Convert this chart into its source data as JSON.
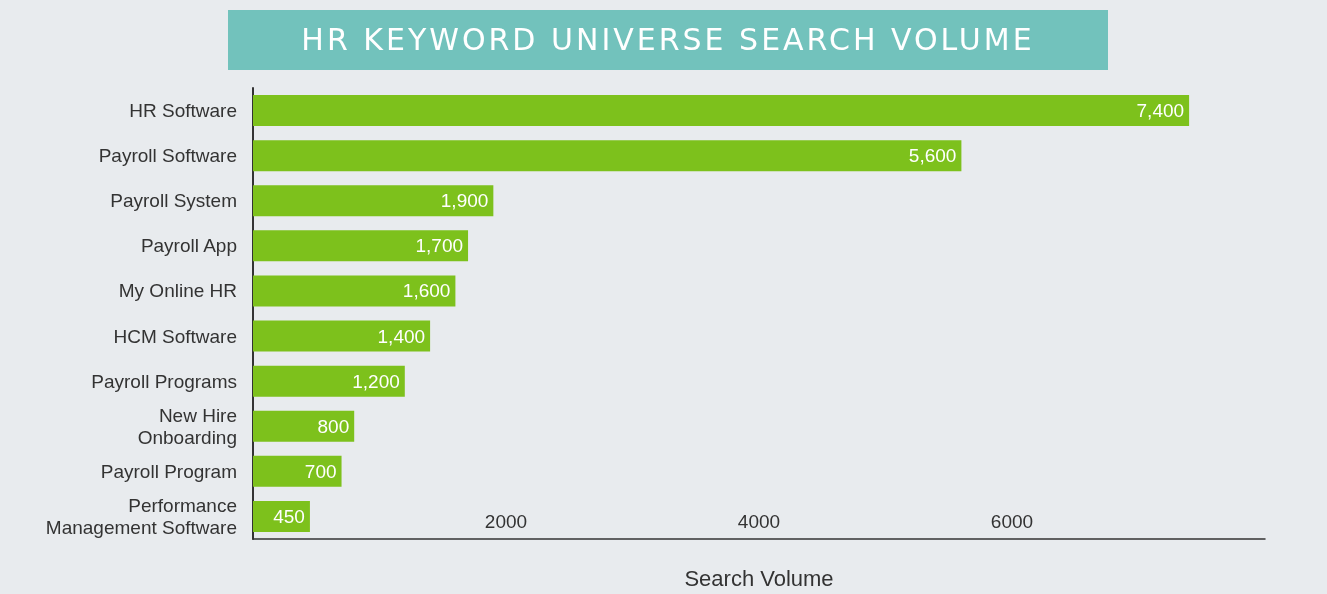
{
  "chart_data": {
    "type": "bar",
    "orientation": "horizontal",
    "title": "HR KEYWORD UNIVERSE SEARCH VOLUME",
    "xlabel": "Search Volume",
    "categories": [
      "HR Software",
      "Payroll Software",
      "Payroll System",
      "Payroll App",
      "My Online HR",
      "HCM Software",
      "Payroll Programs",
      "New Hire\nOnboarding",
      "Payroll Program",
      "Performance\nManagement Software"
    ],
    "values": [
      7400,
      5600,
      1900,
      1700,
      1600,
      1400,
      1200,
      800,
      700,
      450
    ],
    "value_labels": [
      "7,400",
      "5,600",
      "1,900",
      "1,700",
      "1,600",
      "1,400",
      "1,200",
      "800",
      "700",
      "450"
    ],
    "color": "#7dc11c",
    "xlim": [
      0,
      8000
    ],
    "xticks": [
      2000,
      4000,
      6000
    ],
    "grid": false
  }
}
